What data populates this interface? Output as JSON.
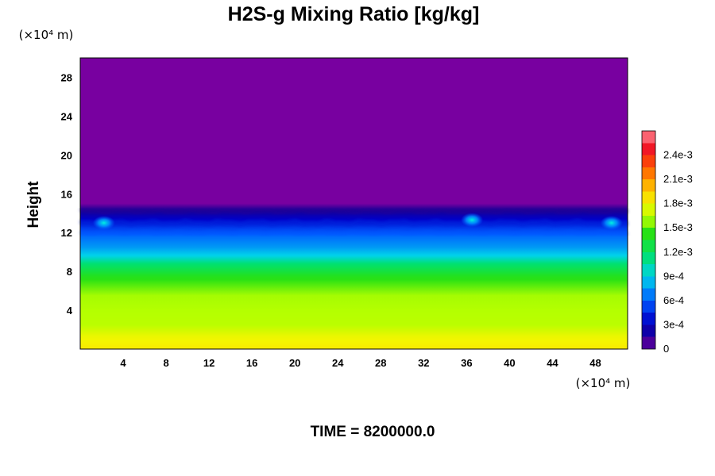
{
  "chart_data": {
    "type": "heatmap",
    "title": "H2S-g Mixing Ratio [kg/kg]",
    "ylabel": "Height",
    "xlabel": "",
    "x_unit_label": "(×10⁴ m)",
    "y_unit_label": "(×10⁴ m)",
    "footer": "TIME = 8200000.0",
    "xlim": [
      0,
      51
    ],
    "ylim": [
      0,
      30
    ],
    "x_ticks": [
      "4",
      "8",
      "12",
      "16",
      "20",
      "24",
      "28",
      "32",
      "36",
      "40",
      "44",
      "48"
    ],
    "y_ticks": [
      "4",
      "8",
      "12",
      "16",
      "20",
      "24",
      "28"
    ],
    "x_tick_values": [
      4,
      8,
      12,
      16,
      20,
      24,
      28,
      32,
      36,
      40,
      44,
      48
    ],
    "y_tick_values": [
      4,
      8,
      12,
      16,
      20,
      24,
      28
    ],
    "colorbar": {
      "min": 0,
      "max": 0.0027,
      "tick_labels": [
        "0",
        "3e-4",
        "6e-4",
        "9e-4",
        "1.2e-3",
        "1.5e-3",
        "1.8e-3",
        "2.1e-3",
        "2.4e-3"
      ],
      "tick_values": [
        0,
        0.0003,
        0.0006,
        0.0009,
        0.0012,
        0.0015,
        0.0018,
        0.0021,
        0.0024
      ]
    },
    "vertical_profile": [
      {
        "height": 0,
        "value": 0.00185
      },
      {
        "height": 1.3,
        "value": 0.00178
      },
      {
        "height": 2.5,
        "value": 0.00164
      },
      {
        "height": 5.5,
        "value": 0.0016
      },
      {
        "height": 7.5,
        "value": 0.0014
      },
      {
        "height": 8.8,
        "value": 0.00115
      },
      {
        "height": 9.6,
        "value": 0.0009
      },
      {
        "height": 10.5,
        "value": 0.00075
      },
      {
        "height": 11.5,
        "value": 0.00065
      },
      {
        "height": 12.5,
        "value": 0.0005
      },
      {
        "height": 13.5,
        "value": 0.0003
      },
      {
        "height": 14.5,
        "value": 0.00012
      },
      {
        "height": 15.0,
        "value": 0.0
      },
      {
        "height": 30,
        "value": 0.0
      }
    ],
    "features": [
      {
        "x": 36.5,
        "height": 13.3,
        "value": 0.0008
      },
      {
        "x": 2.2,
        "height": 13.0,
        "value": 0.0006
      },
      {
        "x": 49.5,
        "height": 13.0,
        "value": 0.0006
      }
    ]
  }
}
